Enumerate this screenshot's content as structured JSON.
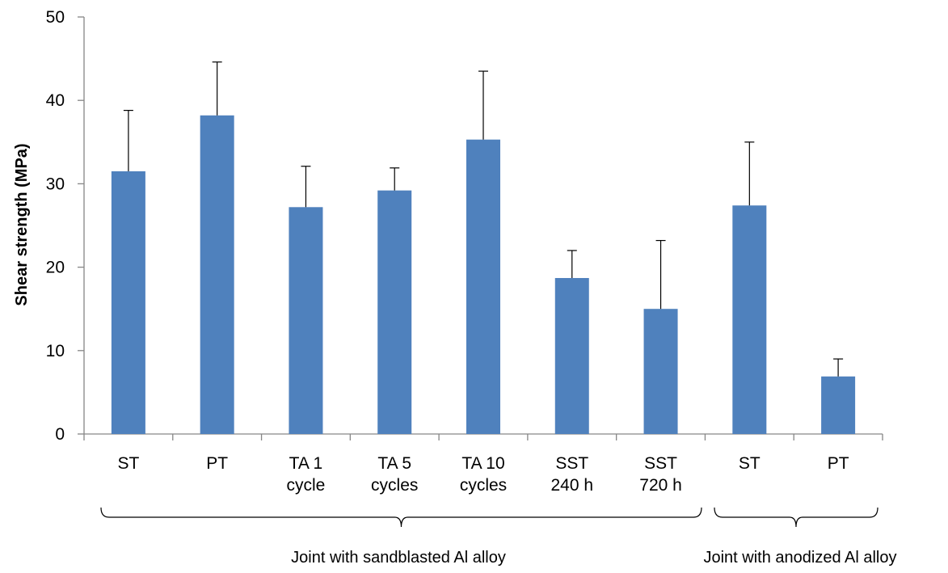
{
  "chart_data": {
    "type": "bar",
    "title": "",
    "ylabel": "Shear strength (MPa)",
    "xlabel": "",
    "ylim": [
      0,
      50
    ],
    "yticks": [
      0,
      10,
      20,
      30,
      40,
      50
    ],
    "grid": false,
    "bar_color": "#4F81BD",
    "categories": [
      [
        "ST"
      ],
      [
        "PT"
      ],
      [
        "TA 1",
        "cycle"
      ],
      [
        "TA 5",
        "cycles"
      ],
      [
        "TA 10",
        "cycles"
      ],
      [
        "SST",
        "240 h"
      ],
      [
        "SST",
        "720 h"
      ],
      [
        "ST"
      ],
      [
        "PT"
      ]
    ],
    "values": [
      31.5,
      38.2,
      27.2,
      29.2,
      35.3,
      18.7,
      15.0,
      27.4,
      6.9
    ],
    "error_upper": [
      7.3,
      6.4,
      4.9,
      2.7,
      8.2,
      3.3,
      8.2,
      7.6,
      2.1
    ],
    "groups": [
      {
        "label": "Joint with sandblasted Al alloy",
        "start": 0,
        "end": 6
      },
      {
        "label": "Joint with anodized Al alloy",
        "start": 7,
        "end": 8
      }
    ]
  }
}
